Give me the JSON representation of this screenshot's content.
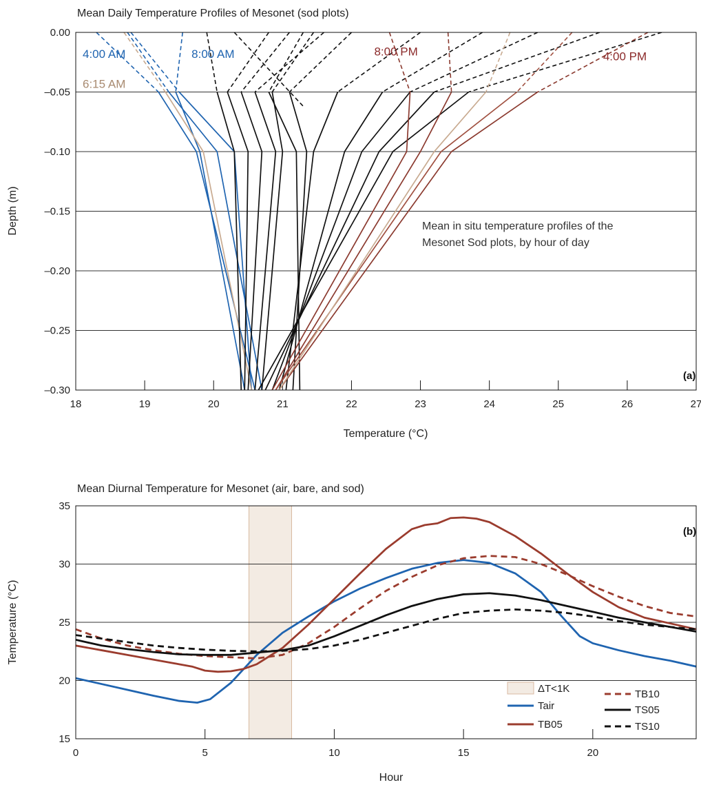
{
  "chart_data": [
    {
      "type": "line",
      "title": "Mean Daily Temperature Profiles of Mesonet (sod plots)",
      "xlabel": "Temperature (°C)",
      "ylabel": "Depth (m)",
      "xlim": [
        18,
        27
      ],
      "ylim": [
        -0.3,
        0.0
      ],
      "xticks": [
        "18",
        "19",
        "20",
        "21",
        "22",
        "23",
        "24",
        "25",
        "26",
        "27"
      ],
      "yticks": [
        "0.00",
        "–0.05",
        "–0.10",
        "–0.15",
        "–0.20",
        "–0.25",
        "–0.30"
      ],
      "grid": "horizontal",
      "panel_label": "(a)",
      "annotation_line1": "Mean in situ temperature profiles of the",
      "annotation_line2": "Mesonet Sod plots, by hour of day",
      "depths": [
        0.0,
        -0.05,
        -0.1,
        -0.3
      ],
      "labels": [
        {
          "text": "4:00 AM",
          "color": "#1f64b0",
          "x": 18.1,
          "y": -0.018
        },
        {
          "text": "8:00 AM",
          "color": "#1f64b0",
          "x": 19.68,
          "y": -0.018
        },
        {
          "text": "6:15 AM",
          "color": "#a88a70",
          "x": 18.1,
          "y": -0.043
        },
        {
          "text": "8:00 PM",
          "color": "#8b2a2a",
          "x": 22.33,
          "y": -0.016
        },
        {
          "text": "4:00 PM",
          "color": "#8b2a2a",
          "x": 25.65,
          "y": -0.02
        }
      ],
      "profiles": [
        {
          "color": "#1f64b0",
          "temps": [
            18.3,
            19.2,
            19.75,
            20.6
          ]
        },
        {
          "color": "#1f64b0",
          "temps": [
            18.75,
            19.35,
            20.05,
            20.7
          ]
        },
        {
          "color": "#1f64b0",
          "temps": [
            18.8,
            19.5,
            20.3,
            20.55
          ]
        },
        {
          "color": "#1f64b0",
          "temps": [
            19.55,
            19.45,
            19.8,
            20.45
          ]
        },
        {
          "color": "#c8aa90",
          "temps": [
            18.7,
            19.3,
            19.85,
            20.55
          ]
        },
        {
          "color": "#111111",
          "temps": [
            19.9,
            20.05,
            20.3,
            20.4
          ]
        },
        {
          "color": "#111111",
          "temps": [
            20.8,
            20.2,
            20.5,
            20.45
          ]
        },
        {
          "color": "#111111",
          "temps": [
            21.1,
            20.4,
            20.7,
            20.5
          ]
        },
        {
          "color": "#111111",
          "temps": [
            21.6,
            20.6,
            20.9,
            20.6
          ]
        },
        {
          "color": "#111111",
          "temps": [
            21.45,
            20.85,
            21.0,
            20.7
          ]
        },
        {
          "color": "#111111",
          "temps": [
            21.3,
            20.8,
            21.2,
            21.25
          ],
          "extra_dash": [
            21.3,
            -0.062
          ]
        },
        {
          "color": "#111111",
          "temps": [
            22.0,
            21.1,
            21.35,
            21.15
          ]
        },
        {
          "color": "#111111",
          "temps": [
            23.0,
            21.8,
            21.45,
            21.05
          ]
        },
        {
          "color": "#111111",
          "temps": [
            23.9,
            22.45,
            21.9,
            20.95
          ]
        },
        {
          "color": "#111111",
          "temps": [
            24.7,
            22.85,
            22.15,
            20.85
          ]
        },
        {
          "color": "#111111",
          "temps": [
            25.6,
            23.2,
            22.4,
            20.75
          ]
        },
        {
          "color": "#111111",
          "temps": [
            26.5,
            23.7,
            22.6,
            20.65
          ]
        },
        {
          "color": "#8b3a2f",
          "temps": [
            22.55,
            22.85,
            22.8,
            20.85
          ]
        },
        {
          "color": "#8b3a2f",
          "temps": [
            23.4,
            23.45,
            23.0,
            20.9
          ]
        },
        {
          "color": "#8b3a2f",
          "temps": [
            26.3,
            24.7,
            23.45,
            20.95
          ]
        },
        {
          "color": "#a05040",
          "temps": [
            25.2,
            24.4,
            23.3,
            20.9
          ]
        },
        {
          "color": "#c8aa90",
          "temps": [
            24.3,
            23.95,
            23.2,
            20.95
          ]
        }
      ]
    },
    {
      "type": "line",
      "title": "Mean Diurnal Temperature for Mesonet (air, bare, and sod)",
      "xlabel": "Hour",
      "ylabel": "Temperature (°C)",
      "xlim": [
        0,
        24
      ],
      "ylim": [
        15,
        35
      ],
      "xticks": [
        "0",
        "5",
        "10",
        "15",
        "20"
      ],
      "yticks": [
        "15",
        "20",
        "25",
        "30",
        "35"
      ],
      "grid": "horizontal",
      "panel_label": "(b)",
      "legend_position": "bottom-right",
      "shaded_region": {
        "name": "ΔT<1K",
        "x0": 6.7,
        "x1": 8.35,
        "fill": "#f3ebe3",
        "stroke": "#d8b8a0"
      },
      "series": [
        {
          "name": "Tair",
          "color": "#1f64b0",
          "dash": "solid",
          "x": [
            0,
            1,
            2,
            3,
            4,
            4.7,
            5.2,
            6,
            7,
            8,
            9,
            10,
            11,
            12,
            13,
            14,
            15,
            16,
            17,
            18,
            18.8,
            19.5,
            20,
            21,
            22,
            23,
            24
          ],
          "y": [
            20.2,
            19.7,
            19.2,
            18.7,
            18.25,
            18.1,
            18.4,
            19.8,
            22.2,
            24.1,
            25.5,
            26.8,
            27.9,
            28.8,
            29.6,
            30.1,
            30.35,
            30.1,
            29.2,
            27.6,
            25.5,
            23.8,
            23.2,
            22.6,
            22.1,
            21.7,
            21.2
          ]
        },
        {
          "name": "TB05",
          "color": "#9b3c2e",
          "dash": "solid",
          "x": [
            0,
            1,
            2,
            3,
            4,
            4.5,
            5,
            5.5,
            6,
            6.5,
            7,
            8,
            9,
            10,
            11,
            12,
            13,
            13.5,
            14,
            14.5,
            15,
            15.5,
            16,
            17,
            18,
            19,
            20,
            21,
            22,
            23,
            24
          ],
          "y": [
            23.0,
            22.6,
            22.2,
            21.8,
            21.4,
            21.2,
            20.85,
            20.75,
            20.8,
            21.0,
            21.4,
            22.8,
            24.8,
            27.0,
            29.2,
            31.3,
            33.0,
            33.35,
            33.5,
            33.95,
            34.0,
            33.9,
            33.6,
            32.4,
            30.9,
            29.2,
            27.6,
            26.3,
            25.4,
            24.9,
            24.4
          ]
        },
        {
          "name": "TB10",
          "color": "#9b3c2e",
          "dash": "dashed",
          "x": [
            0,
            1,
            2,
            3,
            4,
            5,
            6,
            7,
            8,
            9,
            10,
            11,
            12,
            13,
            14,
            15,
            16,
            17,
            18,
            19,
            20,
            21,
            22,
            23,
            24
          ],
          "y": [
            24.4,
            23.6,
            23.0,
            22.6,
            22.3,
            22.1,
            22.0,
            21.9,
            22.2,
            23.2,
            24.6,
            26.2,
            27.7,
            28.9,
            29.9,
            30.5,
            30.7,
            30.6,
            30.0,
            29.1,
            28.1,
            27.2,
            26.4,
            25.8,
            25.5
          ]
        },
        {
          "name": "TS05",
          "color": "#111111",
          "dash": "solid",
          "x": [
            0,
            1,
            2,
            3,
            4,
            5,
            6,
            7,
            8,
            9,
            10,
            11,
            12,
            13,
            14,
            15,
            16,
            17,
            18,
            19,
            20,
            21,
            22,
            23,
            24
          ],
          "y": [
            23.5,
            23.0,
            22.7,
            22.45,
            22.25,
            22.2,
            22.2,
            22.4,
            22.6,
            23.0,
            23.8,
            24.7,
            25.6,
            26.4,
            27.0,
            27.4,
            27.5,
            27.3,
            26.9,
            26.4,
            25.9,
            25.4,
            25.0,
            24.6,
            24.2
          ]
        },
        {
          "name": "TS10",
          "color": "#111111",
          "dash": "dashed",
          "x": [
            0,
            1,
            2,
            3,
            4,
            5,
            6,
            7,
            8,
            9,
            10,
            11,
            12,
            13,
            14,
            15,
            16,
            17,
            18,
            19,
            20,
            21,
            22,
            23,
            24
          ],
          "y": [
            23.9,
            23.6,
            23.3,
            23.0,
            22.8,
            22.65,
            22.55,
            22.5,
            22.55,
            22.7,
            23.0,
            23.5,
            24.1,
            24.7,
            25.3,
            25.8,
            26.0,
            26.1,
            26.0,
            25.8,
            25.5,
            25.1,
            24.8,
            24.6,
            24.4
          ]
        }
      ]
    }
  ]
}
